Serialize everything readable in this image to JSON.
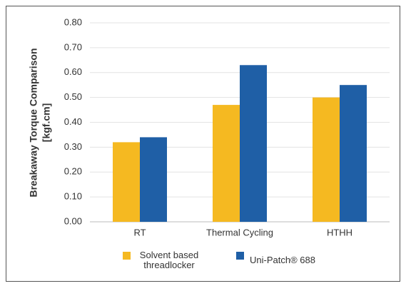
{
  "chart_data": {
    "type": "bar",
    "ylabel": [
      "Breakaway Torque Comparison",
      "[kgf.cm]"
    ],
    "categories": [
      "RT",
      "Thermal Cycling",
      "HTHH"
    ],
    "series": [
      {
        "name": "Solvent based threadlocker",
        "color": "#f5b921",
        "values": [
          0.32,
          0.47,
          0.5
        ]
      },
      {
        "name": "Uni-Patch® 688",
        "color": "#1f5fa6",
        "values": [
          0.34,
          0.63,
          0.55
        ]
      }
    ],
    "ylim": [
      0,
      0.8
    ],
    "yticks": [
      {
        "value": 0,
        "label": "0.00"
      },
      {
        "value": 0.1,
        "label": "0.10"
      },
      {
        "value": 0.2,
        "label": "0.20"
      },
      {
        "value": 0.3,
        "label": "0.30"
      },
      {
        "value": 0.4,
        "label": "0.40"
      },
      {
        "value": 0.5,
        "label": "0.50"
      },
      {
        "value": 0.6,
        "label": "0.60"
      },
      {
        "value": 0.7,
        "label": "0.70"
      },
      {
        "value": 0.8,
        "label": "0.80"
      }
    ],
    "grid": true,
    "legend": "bottom"
  }
}
